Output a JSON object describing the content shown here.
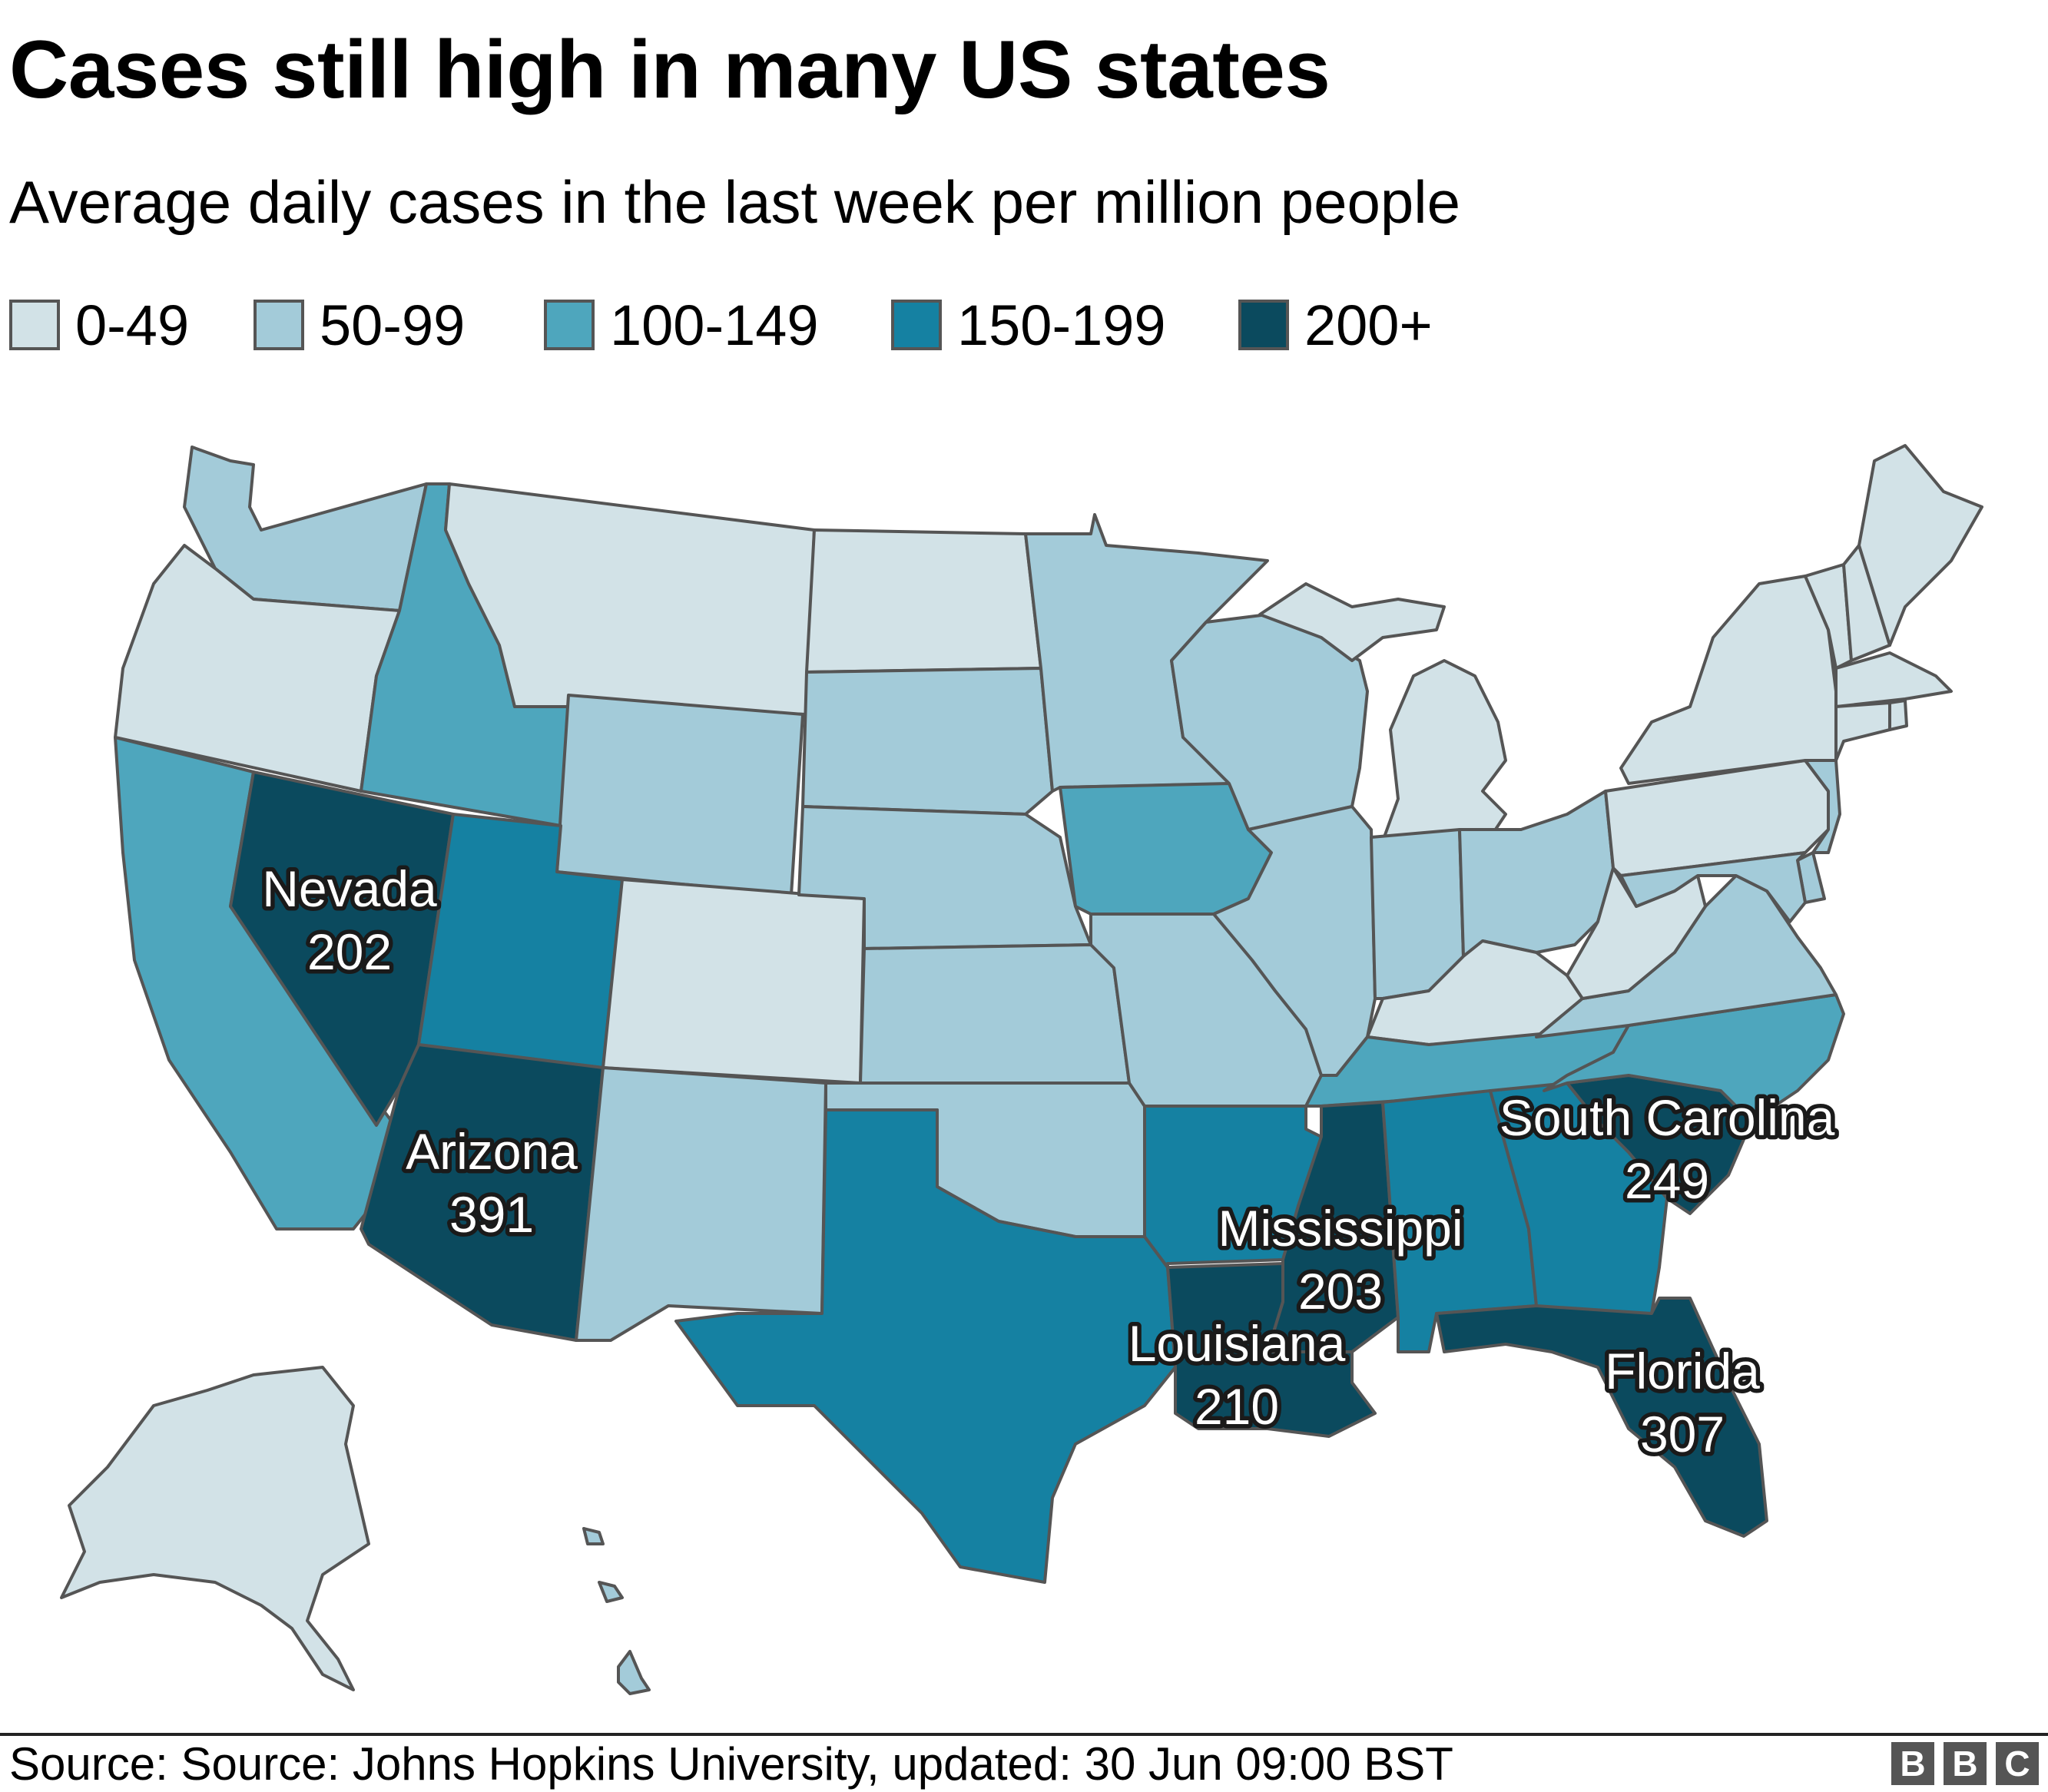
{
  "title": "Cases still high in many US states",
  "subtitle": "Average daily cases in the last week per million people",
  "legend": [
    {
      "label": "0-49",
      "color": "#d2e2e7"
    },
    {
      "label": "50-99",
      "color": "#a3cbd9"
    },
    {
      "label": "100-149",
      "color": "#4ea6bd"
    },
    {
      "label": "150-199",
      "color": "#1581a2"
    },
    {
      "label": "200+",
      "color": "#0b4a5e"
    }
  ],
  "annotations": [
    {
      "name": "Nevada",
      "value": "202"
    },
    {
      "name": "Arizona",
      "value": "391"
    },
    {
      "name": "South Carolina",
      "value": "249"
    },
    {
      "name": "Mississippi",
      "value": "203"
    },
    {
      "name": "Louisiana",
      "value": "210"
    },
    {
      "name": "Florida",
      "value": "307"
    }
  ],
  "source": "Source: Source: Johns Hopkins University, updated: 30 Jun 09:00 BST",
  "logo": [
    "B",
    "B",
    "C"
  ],
  "border_color": "#555555"
}
